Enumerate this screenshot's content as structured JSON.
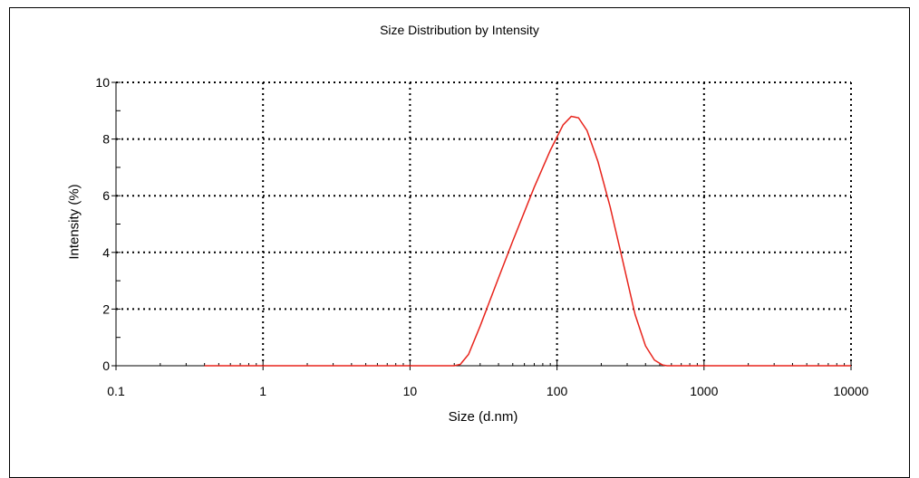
{
  "chart_data": {
    "type": "line",
    "title": "Size Distribution by Intensity",
    "xlabel": "Size (d.nm)",
    "ylabel": "Intensity (%)",
    "x_scale": "log",
    "xlim": [
      0.1,
      10000
    ],
    "ylim": [
      0,
      10
    ],
    "x_ticks": [
      0.1,
      1,
      10,
      100,
      1000,
      10000
    ],
    "x_tick_labels": [
      "0.1",
      "1",
      "10",
      "100",
      "1000",
      "10000"
    ],
    "y_ticks": [
      0,
      2,
      4,
      6,
      8,
      10
    ],
    "y_tick_labels": [
      "0",
      "2",
      "4",
      "6",
      "8",
      "10"
    ],
    "grid": true,
    "legend": "none",
    "colors": {
      "series": "#e8241c",
      "grid": "#000000"
    },
    "series": [
      {
        "x": [
          0.4,
          0.5,
          1,
          2,
          5,
          10,
          15,
          20,
          22,
          25,
          30,
          40,
          50,
          70,
          90,
          110,
          125,
          140,
          160,
          190,
          230,
          280,
          340,
          400,
          460,
          520,
          560,
          700,
          1000,
          10000
        ],
        "y": [
          0,
          0,
          0,
          0,
          0,
          0,
          0,
          0,
          0.05,
          0.4,
          1.4,
          3.1,
          4.4,
          6.3,
          7.6,
          8.5,
          8.8,
          8.75,
          8.3,
          7.2,
          5.6,
          3.7,
          1.8,
          0.7,
          0.2,
          0.03,
          0,
          0,
          0,
          0
        ]
      }
    ]
  }
}
